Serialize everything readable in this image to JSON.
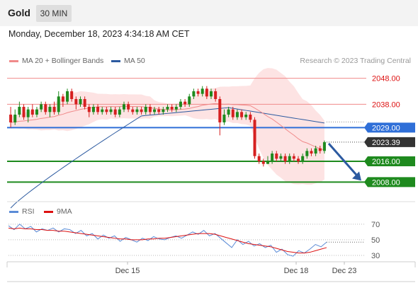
{
  "header": {
    "title": "Gold",
    "timeframe": "30 MIN",
    "datetime": "Monday, December 18, 2023 4:34:18 AM CET"
  },
  "legend": {
    "ma20": {
      "label": "MA 20 + Bollinger Bands",
      "color": "#f08a8a"
    },
    "ma50": {
      "label": "MA 50",
      "color": "#2c5aa0"
    },
    "copyright": "Research © 2023 Trading Central"
  },
  "rsi_legend": {
    "rsi": {
      "label": "RSI",
      "color": "#5b8bd6"
    },
    "ma9": {
      "label": "9MA",
      "color": "#dd1111"
    }
  },
  "chart_data": [
    {
      "type": "candlestick",
      "ylim": [
        2001,
        2052
      ],
      "x_ticks": [
        "Dec 15",
        "Dec 18",
        "Dec 23"
      ],
      "levels": [
        {
          "value": 2048.0,
          "label": "2048.00",
          "type": "resistance",
          "color": "#f08a8a"
        },
        {
          "value": 2038.0,
          "label": "2038.00",
          "type": "resistance",
          "color": "#f08a8a"
        },
        {
          "value": 2029.0,
          "label": "2029.00",
          "type": "pivot",
          "color": "#2f6fd8"
        },
        {
          "value": 2016.0,
          "label": "2016.00",
          "type": "support",
          "color": "#1e8a1e"
        },
        {
          "value": 2008.0,
          "label": "2008.00",
          "type": "support",
          "color": "#1e8a1e"
        }
      ],
      "last_price": {
        "value": 2023.39,
        "label": "2023.39"
      },
      "forecast_target": 2008.0,
      "candles": [
        [
          2034,
          2031,
          2037,
          2029
        ],
        [
          2031,
          2034,
          2036,
          2030
        ],
        [
          2034,
          2037,
          2039,
          2033
        ],
        [
          2037,
          2033,
          2038,
          2032
        ],
        [
          2033,
          2036,
          2037,
          2031
        ],
        [
          2036,
          2034,
          2038,
          2033
        ],
        [
          2034,
          2036,
          2037,
          2033
        ],
        [
          2036,
          2038,
          2039,
          2035
        ],
        [
          2038,
          2035,
          2039,
          2034
        ],
        [
          2035,
          2037,
          2038,
          2033
        ],
        [
          2037,
          2035,
          2039,
          2034
        ],
        [
          2035,
          2041,
          2043,
          2034
        ],
        [
          2041,
          2039,
          2042,
          2037
        ],
        [
          2039,
          2043,
          2044,
          2038
        ],
        [
          2043,
          2040,
          2044,
          2039
        ],
        [
          2040,
          2038,
          2041,
          2036
        ],
        [
          2038,
          2040,
          2041,
          2037
        ],
        [
          2040,
          2037,
          2041,
          2036
        ],
        [
          2037,
          2035,
          2038,
          2033
        ],
        [
          2035,
          2037,
          2038,
          2034
        ],
        [
          2037,
          2035,
          2038,
          2034
        ],
        [
          2035,
          2036,
          2037,
          2034
        ],
        [
          2036,
          2035,
          2037,
          2034
        ],
        [
          2035,
          2036,
          2037,
          2034
        ],
        [
          2036,
          2034,
          2037,
          2033
        ],
        [
          2034,
          2036,
          2037,
          2033
        ],
        [
          2036,
          2038,
          2039,
          2035
        ],
        [
          2038,
          2036,
          2039,
          2035
        ],
        [
          2036,
          2035,
          2037,
          2034
        ],
        [
          2035,
          2036,
          2037,
          2034
        ],
        [
          2036,
          2035,
          2037,
          2034
        ],
        [
          2035,
          2037,
          2038,
          2034
        ],
        [
          2037,
          2035,
          2038,
          2034
        ],
        [
          2035,
          2036,
          2037,
          2034
        ],
        [
          2036,
          2035,
          2037,
          2034
        ],
        [
          2035,
          2036,
          2037,
          2034
        ],
        [
          2036,
          2037,
          2038,
          2035
        ],
        [
          2037,
          2036,
          2038,
          2035
        ],
        [
          2036,
          2037,
          2038,
          2035
        ],
        [
          2037,
          2039,
          2040,
          2036
        ],
        [
          2039,
          2038,
          2040,
          2037
        ],
        [
          2038,
          2041,
          2042,
          2037
        ],
        [
          2041,
          2043,
          2044,
          2040
        ],
        [
          2043,
          2042,
          2044,
          2041
        ],
        [
          2042,
          2044,
          2045,
          2041
        ],
        [
          2044,
          2041,
          2045,
          2040
        ],
        [
          2041,
          2043,
          2044,
          2040
        ],
        [
          2043,
          2040,
          2044,
          2039
        ],
        [
          2040,
          2031,
          2041,
          2026
        ],
        [
          2031,
          2034,
          2036,
          2030
        ],
        [
          2034,
          2036,
          2037,
          2033
        ],
        [
          2036,
          2033,
          2037,
          2032
        ],
        [
          2033,
          2035,
          2036,
          2032
        ],
        [
          2035,
          2033,
          2036,
          2032
        ],
        [
          2033,
          2034,
          2035,
          2032
        ],
        [
          2034,
          2032,
          2035,
          2031
        ],
        [
          2032,
          2018,
          2033,
          2017
        ],
        [
          2018,
          2016,
          2019,
          2015
        ],
        [
          2016,
          2015,
          2017,
          2014
        ],
        [
          2015,
          2016,
          2018,
          2015
        ],
        [
          2016,
          2019,
          2020,
          2015
        ],
        [
          2019,
          2017,
          2020,
          2016
        ],
        [
          2017,
          2018,
          2019,
          2016
        ],
        [
          2018,
          2016,
          2019,
          2015
        ],
        [
          2016,
          2018,
          2019,
          2015
        ],
        [
          2018,
          2017,
          2019,
          2016
        ],
        [
          2017,
          2016,
          2018,
          2015
        ],
        [
          2016,
          2018,
          2019,
          2015
        ],
        [
          2018,
          2020,
          2021,
          2017
        ],
        [
          2020,
          2019,
          2021,
          2018
        ],
        [
          2019,
          2021,
          2022,
          2018
        ],
        [
          2021,
          2020,
          2022,
          2019
        ],
        [
          2020,
          2023.39,
          2024,
          2019
        ]
      ]
    },
    {
      "type": "line",
      "title": "RSI",
      "ylim": [
        20,
        78
      ],
      "y_ticks": [
        70,
        50,
        30
      ],
      "series": [
        {
          "name": "RSI",
          "color": "#5b8bd6",
          "values": [
            68,
            63,
            70,
            64,
            67,
            60,
            64,
            62,
            65,
            60,
            64,
            63,
            58,
            62,
            55,
            58,
            51,
            56,
            52,
            55,
            48,
            53,
            50,
            47,
            52,
            49,
            54,
            51,
            50,
            53,
            55,
            52,
            56,
            60,
            57,
            62,
            55,
            58,
            52,
            46,
            40,
            50,
            44,
            48,
            42,
            45,
            40,
            43,
            34,
            38,
            31,
            29,
            36,
            33,
            38,
            44,
            41,
            47
          ]
        },
        {
          "name": "9MA",
          "color": "#dd1111",
          "values": [
            65,
            64,
            65,
            64,
            64,
            63,
            63,
            62,
            62,
            61,
            61,
            60,
            59,
            58,
            57,
            56,
            55,
            54,
            53,
            52,
            51,
            51,
            50,
            50,
            50,
            51,
            51,
            52,
            52,
            53,
            54,
            55,
            56,
            57,
            58,
            58,
            58,
            57,
            55,
            53,
            51,
            49,
            47,
            45,
            44,
            43,
            42,
            41,
            39,
            37,
            35,
            34,
            33,
            33,
            34,
            36,
            38,
            40
          ]
        }
      ]
    }
  ]
}
